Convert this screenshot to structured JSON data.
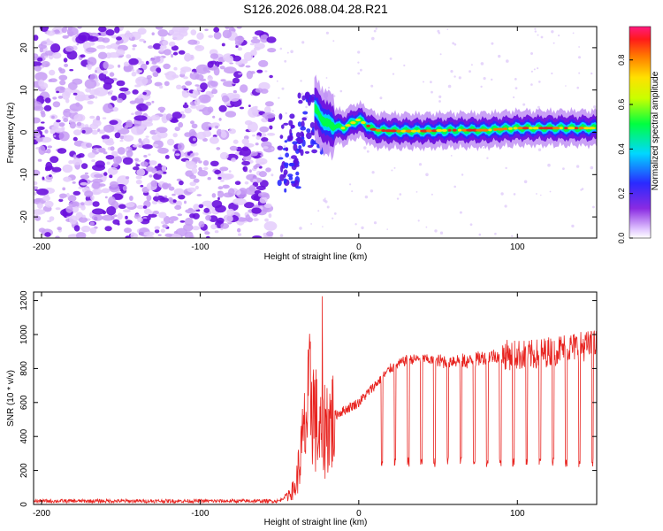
{
  "figure_title": "S126.2026.088.04.28.R21",
  "colors": {
    "snr_line": "#e8231f",
    "axis": "#000000",
    "spectrogram_noise": "#7a1fe0",
    "spectrogram_peak": "#e8231f"
  },
  "chart_data": [
    {
      "type": "heatmap",
      "title": "",
      "xlabel": "Height of straight line (km)",
      "ylabel": "Frequency (Hz)",
      "xlim": [
        -205,
        150
      ],
      "ylim": [
        -25,
        25
      ],
      "x_ticks": [
        -200,
        -100,
        0,
        100
      ],
      "y_ticks": [
        -20,
        -10,
        0,
        10,
        20
      ],
      "colorbar": {
        "label": "Normalized spectral amplitude",
        "range": [
          0.0,
          0.95
        ],
        "ticks": [
          0.0,
          0.2,
          0.4,
          0.6,
          0.8
        ],
        "colormap": "rainbow (violet-blue-cyan-green-yellow-orange-red-magenta)"
      },
      "signal_track": {
        "description": "scattered violet noise for height < -55 km, a dispersed feature near -40 km, then a narrow carrier line near 0 Hz",
        "x": [
          -45,
          -40,
          -35,
          -30,
          -25,
          -20,
          -10,
          0,
          10,
          25,
          40,
          60,
          80,
          100,
          120,
          140,
          150
        ],
        "y": [
          2,
          -5,
          3,
          7,
          4,
          2,
          1,
          3,
          0.5,
          0.3,
          0.3,
          0.5,
          0.5,
          1,
          1,
          1,
          1
        ]
      }
    },
    {
      "type": "line",
      "title": "",
      "xlabel": "Height of straight line (km)",
      "ylabel": "SNR (10 * v/v)",
      "xlim": [
        -205,
        150
      ],
      "ylim": [
        0,
        1250
      ],
      "x_ticks": [
        -200,
        -100,
        0,
        100
      ],
      "y_ticks": [
        0,
        200,
        400,
        600,
        800,
        1000,
        1200
      ],
      "series": [
        {
          "x": [
            -205,
            -150,
            -100,
            -50,
            -40,
            -35,
            -30,
            -25,
            -20,
            -10,
            0,
            10,
            20,
            30,
            40,
            50,
            60,
            70,
            80,
            90,
            100,
            110,
            120,
            130,
            140,
            150
          ],
          "y": [
            20,
            20,
            20,
            20,
            100,
            400,
            700,
            400,
            500,
            550,
            600,
            700,
            800,
            850,
            860,
            840,
            850,
            840,
            870,
            880,
            880,
            880,
            900,
            920,
            930,
            940
          ],
          "dropout_level": 250,
          "peak": {
            "x": -23,
            "y": 1225
          }
        }
      ]
    }
  ]
}
